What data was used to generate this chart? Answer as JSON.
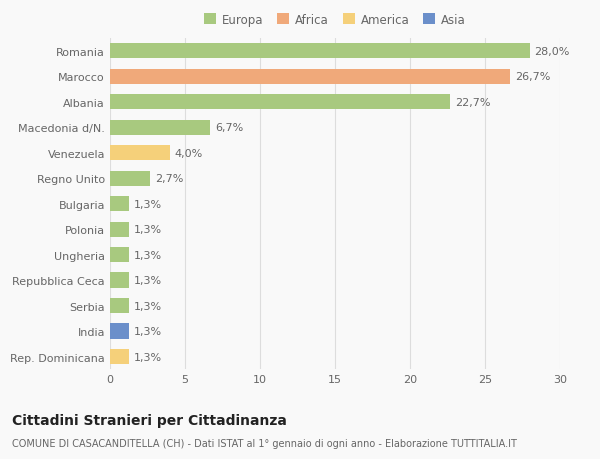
{
  "countries": [
    "Romania",
    "Marocco",
    "Albania",
    "Macedonia d/N.",
    "Venezuela",
    "Regno Unito",
    "Bulgaria",
    "Polonia",
    "Ungheria",
    "Repubblica Ceca",
    "Serbia",
    "India",
    "Rep. Dominicana"
  ],
  "values": [
    28.0,
    26.7,
    22.7,
    6.7,
    4.0,
    2.7,
    1.3,
    1.3,
    1.3,
    1.3,
    1.3,
    1.3,
    1.3
  ],
  "labels": [
    "28,0%",
    "26,7%",
    "22,7%",
    "6,7%",
    "4,0%",
    "2,7%",
    "1,3%",
    "1,3%",
    "1,3%",
    "1,3%",
    "1,3%",
    "1,3%",
    "1,3%"
  ],
  "colors": [
    "#a8c97f",
    "#f0a97a",
    "#a8c97f",
    "#a8c97f",
    "#f5d07a",
    "#a8c97f",
    "#a8c97f",
    "#a8c97f",
    "#a8c97f",
    "#a8c97f",
    "#a8c97f",
    "#6b8fca",
    "#f5d07a"
  ],
  "legend_labels": [
    "Europa",
    "Africa",
    "America",
    "Asia"
  ],
  "legend_colors": [
    "#a8c97f",
    "#f0a97a",
    "#f5d07a",
    "#6b8fca"
  ],
  "xlim": [
    0,
    30
  ],
  "xticks": [
    0,
    5,
    10,
    15,
    20,
    25,
    30
  ],
  "title": "Cittadini Stranieri per Cittadinanza",
  "subtitle": "COMUNE DI CASACANDITELLA (CH) - Dati ISTAT al 1° gennaio di ogni anno - Elaborazione TUTTITALIA.IT",
  "bg_color": "#f9f9f9",
  "grid_color": "#dddddd",
  "bar_height": 0.6,
  "label_fontsize": 8,
  "title_fontsize": 10,
  "subtitle_fontsize": 7,
  "tick_fontsize": 8,
  "legend_fontsize": 8.5
}
